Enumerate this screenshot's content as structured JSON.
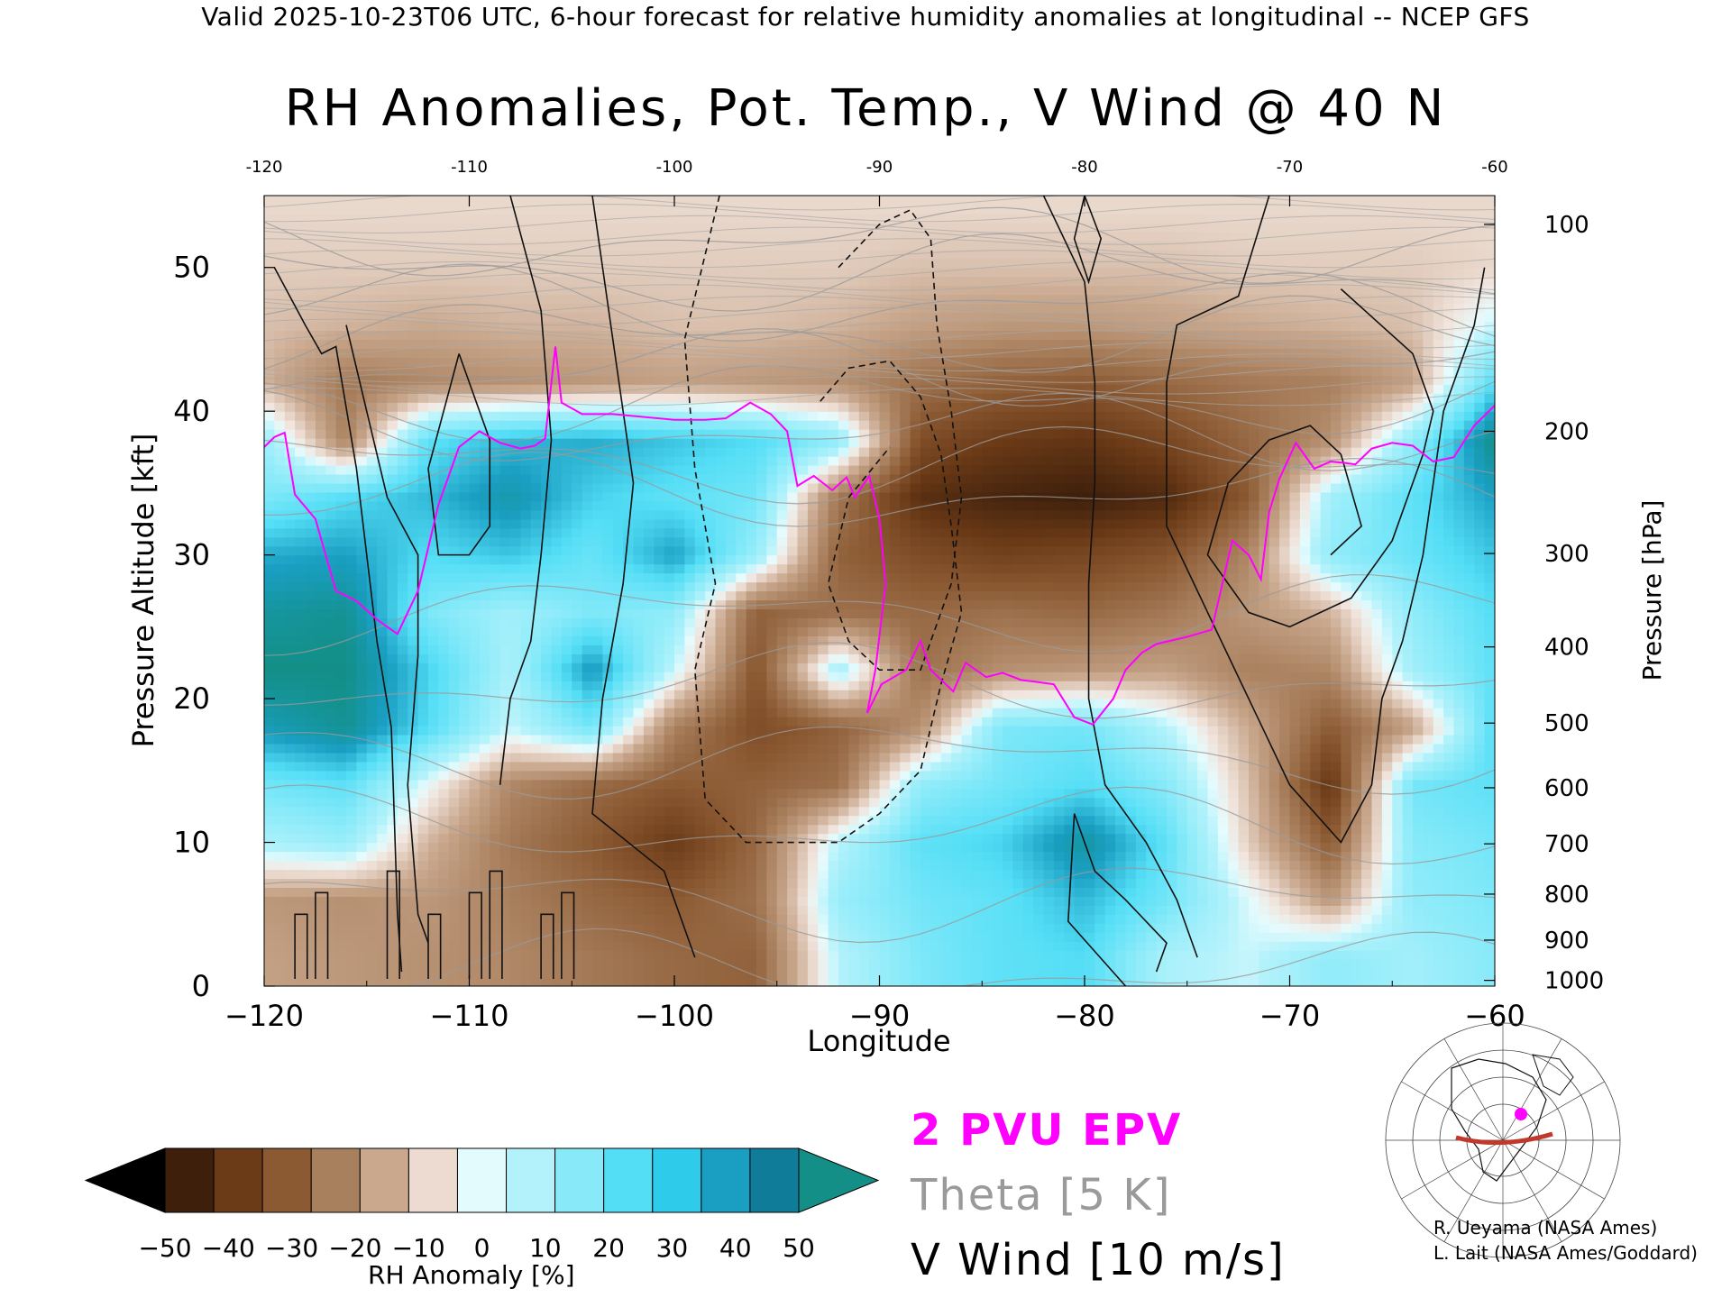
{
  "header": "Valid 2025-10-23T06 UTC, 6-hour forecast for relative humidity anomalies at longitudinal -- NCEP GFS",
  "chart_data": {
    "type": "heatmap",
    "title": "RH Anomalies, Pot. Temp., V Wind @ 40 N",
    "xlabel": "Longitude",
    "ylabel_left": "Pressure Altitude [kft]",
    "ylabel_right": "Pressure [hPa]",
    "xlim": [
      -120,
      -60
    ],
    "ylim": [
      0,
      55
    ],
    "x_ticks": [
      -120,
      -110,
      -100,
      -90,
      -80,
      -70,
      -60
    ],
    "x_tick_labels": [
      "−120",
      "−110",
      "−100",
      "−90",
      "−80",
      "−70",
      "−60"
    ],
    "x_top_tick_labels": [
      "-120",
      "-110",
      "-100",
      "-90",
      "-80",
      "-70",
      "-60"
    ],
    "y_ticks": [
      0,
      10,
      20,
      30,
      40,
      50
    ],
    "y_tick_labels": [
      "0",
      "10",
      "20",
      "30",
      "40",
      "50"
    ],
    "pressure_ticks": [
      {
        "hpa": 100,
        "kft": 53.0
      },
      {
        "hpa": 200,
        "kft": 38.6
      },
      {
        "hpa": 300,
        "kft": 30.1
      },
      {
        "hpa": 400,
        "kft": 23.6
      },
      {
        "hpa": 500,
        "kft": 18.3
      },
      {
        "hpa": 600,
        "kft": 13.8
      },
      {
        "hpa": 700,
        "kft": 9.9
      },
      {
        "hpa": 800,
        "kft": 6.4
      },
      {
        "hpa": 900,
        "kft": 3.2
      },
      {
        "hpa": 1000,
        "kft": 0.4
      }
    ],
    "rh_anomaly_grid": {
      "x": [
        -120,
        -116,
        -112,
        -108,
        -104,
        -100,
        -96,
        -92,
        -88,
        -84,
        -80,
        -76,
        -72,
        -68,
        -64,
        -60
      ],
      "y": [
        2,
        6,
        10,
        14,
        18,
        22,
        26,
        30,
        34,
        38,
        42,
        46,
        50,
        54
      ],
      "values": [
        [
          -12,
          -14,
          -16,
          -18,
          -22,
          -26,
          -28,
          10,
          22,
          28,
          30,
          12,
          8,
          18,
          14,
          20
        ],
        [
          -14,
          -16,
          -14,
          -20,
          -26,
          -30,
          -24,
          16,
          24,
          28,
          36,
          24,
          6,
          -14,
          18,
          22
        ],
        [
          12,
          16,
          -8,
          -22,
          -30,
          -40,
          -26,
          10,
          28,
          32,
          46,
          28,
          -4,
          -30,
          20,
          24
        ],
        [
          24,
          28,
          4,
          -18,
          -26,
          -30,
          -28,
          -24,
          18,
          24,
          30,
          20,
          -6,
          -42,
          24,
          28
        ],
        [
          42,
          48,
          30,
          8,
          24,
          -20,
          -34,
          -28,
          -16,
          22,
          24,
          10,
          -10,
          -30,
          -12,
          30
        ],
        [
          50,
          50,
          32,
          12,
          42,
          8,
          -32,
          14,
          -24,
          -16,
          -14,
          -12,
          -20,
          -18,
          14,
          28
        ],
        [
          46,
          48,
          22,
          14,
          22,
          18,
          -28,
          -24,
          -26,
          -24,
          -26,
          -22,
          -14,
          -8,
          18,
          30
        ],
        [
          38,
          40,
          30,
          34,
          26,
          40,
          16,
          -28,
          -34,
          -38,
          -36,
          -32,
          -18,
          18,
          26,
          34
        ],
        [
          22,
          30,
          36,
          44,
          32,
          28,
          24,
          -22,
          -44,
          -48,
          -50,
          -46,
          -30,
          14,
          28,
          40
        ],
        [
          16,
          -20,
          28,
          36,
          38,
          34,
          30,
          18,
          -34,
          -40,
          -42,
          -36,
          -26,
          -16,
          18,
          50
        ],
        [
          -8,
          -22,
          -18,
          -16,
          -14,
          -12,
          -14,
          -16,
          -24,
          -28,
          -30,
          -26,
          -22,
          -20,
          -12,
          30
        ],
        [
          -6,
          -8,
          -10,
          -8,
          -8,
          -6,
          -6,
          -8,
          -12,
          -14,
          -14,
          -12,
          -10,
          -8,
          -6,
          8
        ],
        [
          -4,
          -4,
          -4,
          -4,
          -4,
          -4,
          -4,
          -4,
          -6,
          -6,
          -6,
          -6,
          -4,
          -4,
          -4,
          -2
        ],
        [
          -2,
          -2,
          -2,
          -2,
          -2,
          -2,
          -2,
          -2,
          -2,
          -2,
          -2,
          -2,
          -2,
          -2,
          -2,
          -2
        ]
      ]
    },
    "pv_2pvu_line": {
      "name": "2 PVU EPV",
      "x": [
        -120,
        -119.5,
        -119,
        -118.5,
        -117.5,
        -116.5,
        -115.5,
        -114.5,
        -113.5,
        -112.5,
        -111.5,
        -110.5,
        -109.5,
        -108.5,
        -107.5,
        -106.8,
        -106.3,
        -105.8,
        -105.5,
        -104.5,
        -103,
        -101.5,
        -100,
        -98.5,
        -97.5,
        -96.3,
        -95.3,
        -94.5,
        -94,
        -93.2,
        -92.3,
        -91.6,
        -91.2,
        -90.5,
        -90,
        -89.7,
        -90.2,
        -90.6,
        -89.9,
        -88.7,
        -88,
        -87.5,
        -86.4,
        -85.8,
        -84.8,
        -84,
        -83.1,
        -82.5,
        -81.5,
        -80.5,
        -79.6,
        -78.6,
        -78,
        -77.2,
        -76.5,
        -75,
        -73.8,
        -73.2,
        -72.8,
        -72,
        -71.4,
        -71,
        -70.5,
        -69.7,
        -68.8,
        -68,
        -67.3,
        -66.8,
        -66,
        -65,
        -64,
        -63,
        -62,
        -61,
        -60
      ],
      "y": [
        37.5,
        38.2,
        38.5,
        34.2,
        32.5,
        27.5,
        26.8,
        25.5,
        24.5,
        27.5,
        33.5,
        37.5,
        38.6,
        37.8,
        37.4,
        37.6,
        38.1,
        44.5,
        40.6,
        39.8,
        39.8,
        39.6,
        39.4,
        39.4,
        39.5,
        40.6,
        39.8,
        38.6,
        34.8,
        35.5,
        34.5,
        35.4,
        34,
        35.5,
        32.5,
        28,
        22,
        19,
        21,
        22,
        24,
        22,
        20.5,
        22.5,
        21.5,
        21.8,
        21.3,
        21.2,
        21,
        18.7,
        18.2,
        20,
        22,
        23.2,
        23.8,
        24.3,
        24.8,
        28.5,
        31,
        30,
        28.3,
        33,
        35.3,
        37.8,
        36,
        36.5,
        36.4,
        36.3,
        37.4,
        37.8,
        37.6,
        36.5,
        36.8,
        39,
        40.4
      ]
    },
    "theta_levels_K": [
      280,
      290,
      300,
      310,
      320,
      330,
      340,
      350,
      360,
      370,
      380,
      390,
      400,
      410,
      420
    ],
    "v_wind_contours_ms": [
      -30,
      -10,
      0,
      10,
      30
    ],
    "colorbar": {
      "label": "RH Anomaly [%]",
      "ticks": [
        "−50",
        "−40",
        "−30",
        "−20",
        "−10",
        "0",
        "10",
        "20",
        "30",
        "40",
        "50"
      ],
      "colors": [
        "#000000",
        "#3d1f0b",
        "#6b3a17",
        "#8b5a33",
        "#a9805e",
        "#c9a88e",
        "#eddad0",
        "#e3fbfd",
        "#b3f2fb",
        "#88eaf9",
        "#54def6",
        "#2fcbea",
        "#1a9fc3",
        "#0f7c9a",
        "#138f87"
      ]
    },
    "grid": false
  },
  "legend": {
    "pvu": "2 PVU EPV",
    "theta": "Theta [5 K]",
    "wind": "V Wind [10 m/s]"
  },
  "credits": {
    "line1": "R. Ueyama (NASA Ames)",
    "line2": "L. Lait (NASA Ames/Goddard)"
  },
  "colors": {
    "pvu": "#ff00ff",
    "theta": "#9a9a9a",
    "wind": "#000000",
    "section_line": "#c0392b"
  }
}
